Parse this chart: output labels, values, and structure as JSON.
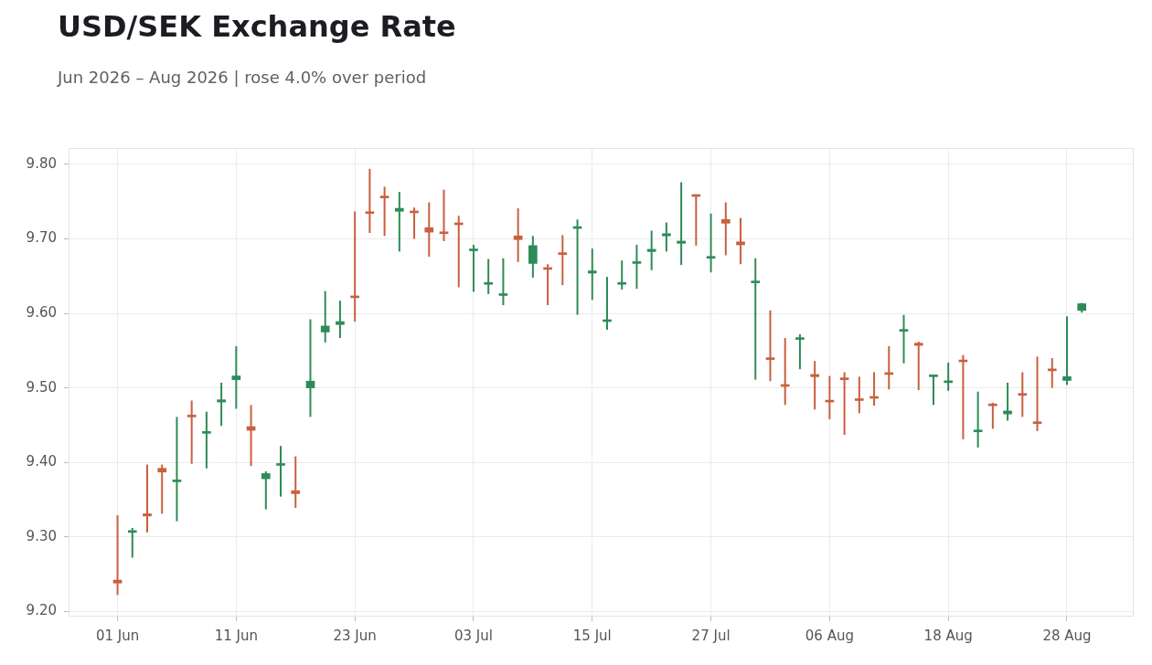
{
  "chart_data": {
    "type": "candlestick",
    "title": "USD/SEK Exchange Rate",
    "subtitle": "Jun 2026 – Aug 2026 | rose 4.0% over period",
    "categories": [
      "01 Jun",
      null,
      null,
      null,
      null,
      null,
      null,
      null,
      "11 Jun",
      null,
      null,
      null,
      null,
      null,
      null,
      null,
      "23 Jun",
      null,
      null,
      null,
      null,
      null,
      null,
      null,
      "03 Jul",
      null,
      null,
      null,
      null,
      null,
      null,
      null,
      "15 Jul",
      null,
      null,
      null,
      null,
      null,
      null,
      null,
      "27 Jul",
      null,
      null,
      null,
      null,
      null,
      null,
      null,
      "06 Aug",
      null,
      null,
      null,
      null,
      null,
      null,
      null,
      "18 Aug",
      null,
      null,
      null,
      null,
      null,
      null,
      null,
      "28 Aug",
      null
    ],
    "ohlc": [
      [
        9.242,
        9.329,
        9.222,
        9.238
      ],
      [
        9.306,
        9.312,
        9.272,
        9.308
      ],
      [
        9.331,
        9.397,
        9.306,
        9.328
      ],
      [
        9.392,
        9.397,
        9.331,
        9.387
      ],
      [
        9.374,
        9.461,
        9.321,
        9.376
      ],
      [
        9.463,
        9.483,
        9.398,
        9.461
      ],
      [
        9.439,
        9.468,
        9.392,
        9.441
      ],
      [
        9.481,
        9.507,
        9.449,
        9.484
      ],
      [
        9.511,
        9.556,
        9.472,
        9.516
      ],
      [
        9.448,
        9.477,
        9.395,
        9.443
      ],
      [
        9.378,
        9.388,
        9.337,
        9.385
      ],
      [
        9.396,
        9.422,
        9.354,
        9.397
      ],
      [
        9.362,
        9.408,
        9.339,
        9.358
      ],
      [
        9.5,
        9.592,
        9.461,
        9.509
      ],
      [
        9.575,
        9.63,
        9.561,
        9.583
      ],
      [
        9.585,
        9.617,
        9.567,
        9.589
      ],
      [
        9.622,
        9.737,
        9.589,
        9.621
      ],
      [
        9.735,
        9.794,
        9.708,
        9.734
      ],
      [
        9.756,
        9.77,
        9.704,
        9.755
      ],
      [
        9.737,
        9.763,
        9.683,
        9.741
      ],
      [
        9.737,
        9.742,
        9.7,
        9.735
      ],
      [
        9.715,
        9.749,
        9.676,
        9.709
      ],
      [
        9.708,
        9.766,
        9.697,
        9.707
      ],
      [
        9.721,
        9.731,
        9.635,
        9.719
      ],
      [
        9.684,
        9.692,
        9.629,
        9.686
      ],
      [
        9.639,
        9.673,
        9.626,
        9.641
      ],
      [
        9.624,
        9.674,
        9.611,
        9.626
      ],
      [
        9.704,
        9.741,
        9.669,
        9.699
      ],
      [
        9.667,
        9.704,
        9.648,
        9.691
      ],
      [
        9.661,
        9.666,
        9.611,
        9.659
      ],
      [
        9.681,
        9.705,
        9.638,
        9.679
      ],
      [
        9.714,
        9.726,
        9.598,
        9.716
      ],
      [
        9.654,
        9.687,
        9.618,
        9.657
      ],
      [
        9.589,
        9.649,
        9.578,
        9.591
      ],
      [
        9.639,
        9.671,
        9.632,
        9.641
      ],
      [
        9.667,
        9.692,
        9.633,
        9.668
      ],
      [
        9.683,
        9.711,
        9.658,
        9.686
      ],
      [
        9.704,
        9.722,
        9.683,
        9.707
      ],
      [
        9.694,
        9.776,
        9.665,
        9.697
      ],
      [
        9.758,
        9.759,
        9.691,
        9.757
      ],
      [
        9.674,
        9.734,
        9.655,
        9.676
      ],
      [
        9.726,
        9.749,
        9.678,
        9.721
      ],
      [
        9.696,
        9.728,
        9.666,
        9.692
      ],
      [
        9.641,
        9.674,
        9.511,
        9.642
      ],
      [
        9.54,
        9.604,
        9.509,
        9.538
      ],
      [
        9.504,
        9.567,
        9.477,
        9.502
      ],
      [
        9.565,
        9.572,
        9.525,
        9.567
      ],
      [
        9.518,
        9.536,
        9.471,
        9.515
      ],
      [
        9.483,
        9.516,
        9.458,
        9.481
      ],
      [
        9.513,
        9.521,
        9.437,
        9.511
      ],
      [
        9.484,
        9.515,
        9.466,
        9.483
      ],
      [
        9.488,
        9.521,
        9.476,
        9.486
      ],
      [
        9.52,
        9.556,
        9.498,
        9.518
      ],
      [
        9.576,
        9.598,
        9.533,
        9.578
      ],
      [
        9.56,
        9.562,
        9.497,
        9.557
      ],
      [
        9.515,
        9.517,
        9.477,
        9.516
      ],
      [
        9.507,
        9.534,
        9.496,
        9.508
      ],
      [
        9.536,
        9.544,
        9.431,
        9.535
      ],
      [
        9.441,
        9.495,
        9.42,
        9.442
      ],
      [
        9.477,
        9.48,
        9.445,
        9.476
      ],
      [
        9.465,
        9.507,
        9.456,
        9.469
      ],
      [
        9.491,
        9.521,
        9.461,
        9.49
      ],
      [
        9.454,
        9.542,
        9.442,
        9.452
      ],
      [
        9.524,
        9.54,
        9.5,
        9.523
      ],
      [
        9.51,
        9.596,
        9.504,
        9.515
      ],
      [
        9.604,
        9.614,
        9.601,
        9.613
      ]
    ],
    "colors": [
      "#c8603e",
      "#2e8b57",
      "#c8603e",
      "#c8603e",
      "#2e8b57",
      "#c8603e",
      "#2e8b57",
      "#2e8b57",
      "#2e8b57",
      "#c8603e",
      "#2e8b57",
      "#2e8b57",
      "#c8603e",
      "#2e8b57",
      "#2e8b57",
      "#2e8b57",
      "#c8603e",
      "#c8603e",
      "#c8603e",
      "#2e8b57",
      "#c8603e",
      "#c8603e",
      "#c8603e",
      "#c8603e",
      "#2e8b57",
      "#2e8b57",
      "#2e8b57",
      "#c8603e",
      "#2e8b57",
      "#c8603e",
      "#c8603e",
      "#2e8b57",
      "#2e8b57",
      "#2e8b57",
      "#2e8b57",
      "#2e8b57",
      "#2e8b57",
      "#2e8b57",
      "#2e8b57",
      "#c8603e",
      "#2e8b57",
      "#c8603e",
      "#c8603e",
      "#2e8b57",
      "#c8603e",
      "#c8603e",
      "#2e8b57",
      "#c8603e",
      "#c8603e",
      "#c8603e",
      "#c8603e",
      "#c8603e",
      "#c8603e",
      "#2e8b57",
      "#c8603e",
      "#2e8b57",
      "#2e8b57",
      "#c8603e",
      "#2e8b57",
      "#c8603e",
      "#2e8b57",
      "#c8603e",
      "#c8603e",
      "#c8603e",
      "#2e8b57",
      "#2e8b57"
    ],
    "ylim": [
      9.193,
      9.822
    ],
    "yticks": [
      {
        "value": 9.2,
        "label": "9.20"
      },
      {
        "value": 9.3,
        "label": "9.30"
      },
      {
        "value": 9.4,
        "label": "9.40"
      },
      {
        "value": 9.5,
        "label": "9.50"
      },
      {
        "value": 9.6,
        "label": "9.60"
      },
      {
        "value": 9.7,
        "label": "9.70"
      },
      {
        "value": 9.8,
        "label": "9.80"
      }
    ],
    "grid": true
  }
}
